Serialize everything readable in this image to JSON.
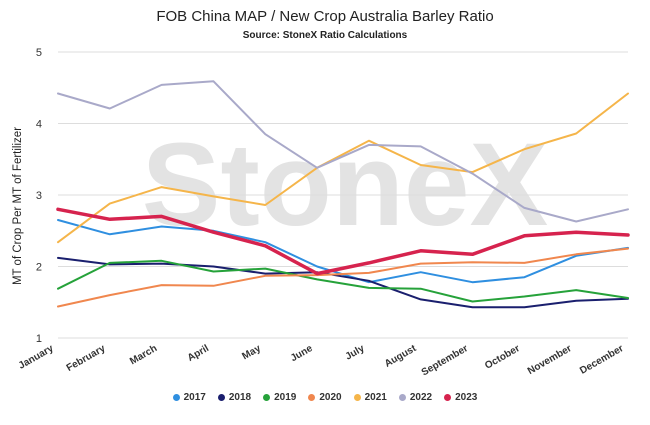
{
  "chart_data": {
    "type": "line",
    "title": "FOB China MAP / New Crop Australia Barley Ratio",
    "subtitle": "Source: StoneX Ratio Calculations",
    "ylabel": "MT of Crop Per MT of Fertilizer",
    "xlabel": "",
    "ylim": [
      1,
      5
    ],
    "yticks": [
      "1",
      "2",
      "3",
      "4",
      "5"
    ],
    "grid": true,
    "legend_position": "bottom",
    "watermark": "StoneX",
    "categories": [
      "January",
      "February",
      "March",
      "April",
      "May",
      "June",
      "July",
      "August",
      "September",
      "October",
      "November",
      "December"
    ],
    "series": [
      {
        "name": "2017",
        "color": "#2f8fe0",
        "width": 2,
        "values": [
          2.65,
          2.45,
          2.56,
          2.5,
          2.34,
          2.0,
          1.78,
          1.92,
          1.78,
          1.85,
          2.15,
          2.26
        ]
      },
      {
        "name": "2018",
        "color": "#1a1f6e",
        "width": 2,
        "values": [
          2.12,
          2.03,
          2.04,
          2.0,
          1.9,
          1.92,
          1.8,
          1.54,
          1.43,
          1.43,
          1.52,
          1.55
        ]
      },
      {
        "name": "2019",
        "color": "#26a23a",
        "width": 2,
        "values": [
          1.69,
          2.05,
          2.08,
          1.93,
          1.97,
          1.82,
          1.7,
          1.69,
          1.51,
          1.58,
          1.67,
          1.56
        ]
      },
      {
        "name": "2020",
        "color": "#f0874e",
        "width": 2,
        "values": [
          1.44,
          1.6,
          1.74,
          1.73,
          1.87,
          1.88,
          1.91,
          2.04,
          2.06,
          2.05,
          2.17,
          2.25
        ]
      },
      {
        "name": "2021",
        "color": "#f5b54a",
        "width": 2,
        "values": [
          2.34,
          2.88,
          3.11,
          2.98,
          2.86,
          3.38,
          3.76,
          3.42,
          3.32,
          3.64,
          3.86,
          4.42
        ]
      },
      {
        "name": "2022",
        "color": "#a9a9c9",
        "width": 2,
        "values": [
          4.42,
          4.21,
          4.54,
          4.59,
          3.85,
          3.38,
          3.7,
          3.68,
          3.3,
          2.82,
          2.63,
          2.8
        ]
      },
      {
        "name": "2023",
        "color": "#d6234e",
        "width": 3.5,
        "values": [
          2.8,
          2.66,
          2.7,
          2.48,
          2.29,
          1.9,
          2.05,
          2.22,
          2.17,
          2.43,
          2.48,
          2.44
        ]
      }
    ]
  }
}
